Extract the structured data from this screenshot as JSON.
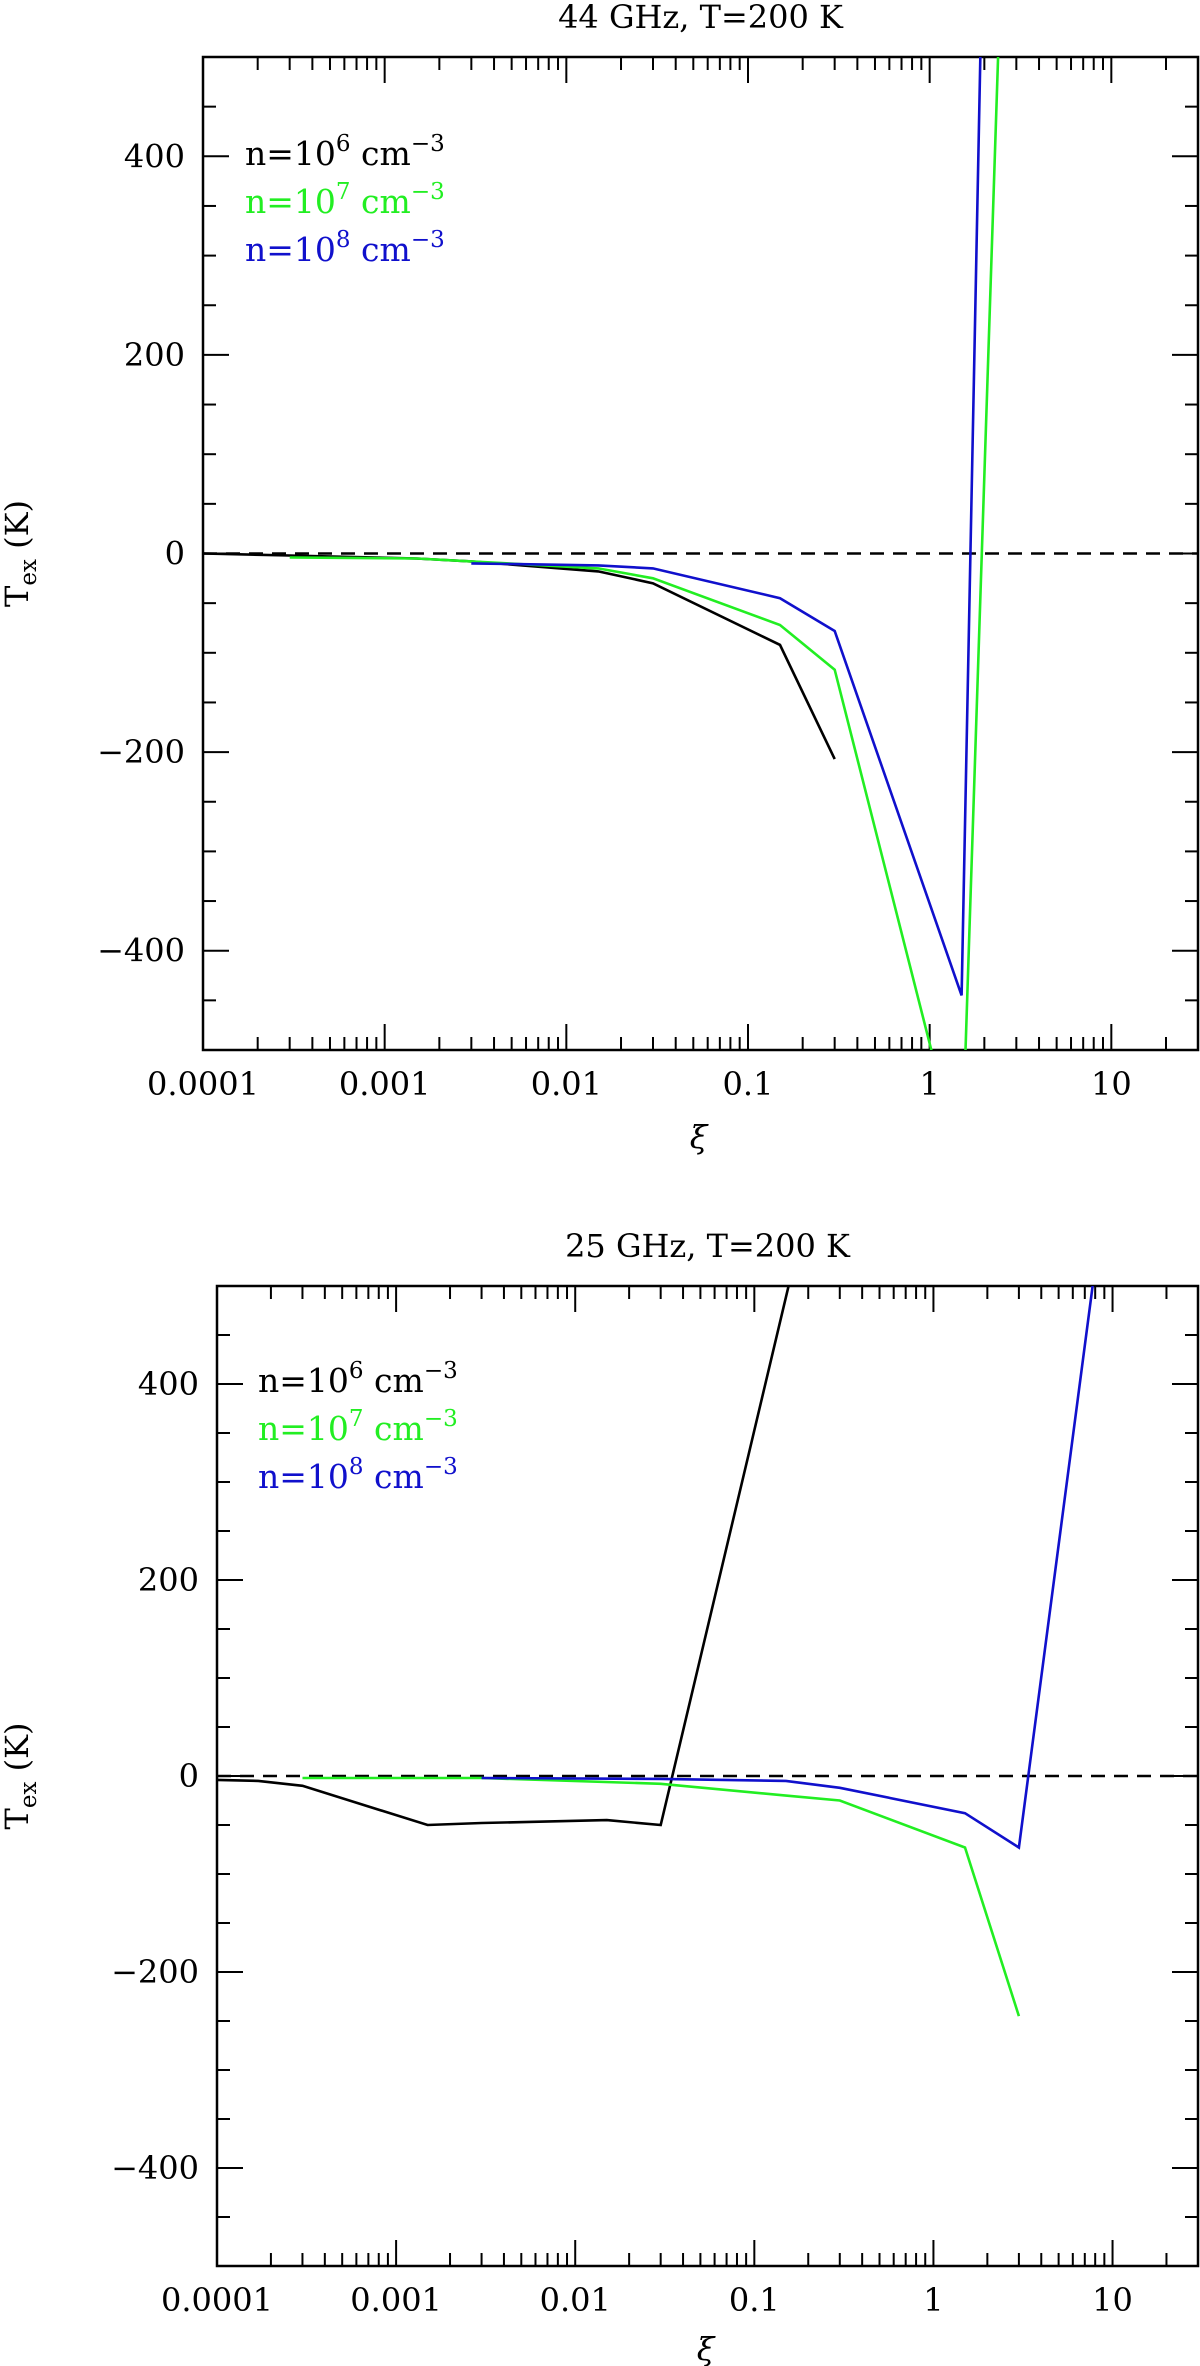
{
  "chart_data": [
    {
      "type": "line",
      "title": "44 GHz, T=200 K",
      "xlabel": "ξ",
      "ylabel": "T",
      "ylabel_sub": "ex",
      "ylabel_unit": "(K)",
      "xscale": "log",
      "xlim": [
        0.0001,
        30
      ],
      "ylim": [
        -500,
        500
      ],
      "x_ticks": [
        0.0001,
        0.001,
        0.01,
        0.1,
        1,
        10
      ],
      "x_tick_labels": [
        "0.0001",
        "0.001",
        "0.01",
        "0.1",
        "1",
        "10"
      ],
      "y_ticks": [
        -400,
        -200,
        0,
        200,
        400
      ],
      "y_tick_labels": [
        "−400",
        "−200",
        "0",
        "200",
        "400"
      ],
      "reference_line": {
        "y": 0,
        "style": "dashed",
        "color": "#000000"
      },
      "legend_position": "top-left",
      "series": [
        {
          "name_base": "n=10",
          "name_exp": "6",
          "name_unit": "cm",
          "name_unit_exp": "−3",
          "color": "#000000",
          "points": [
            [
              0.0001,
              0
            ],
            [
              0.0003,
              -2
            ],
            [
              0.0015,
              -5
            ],
            [
              0.003,
              -8
            ],
            [
              0.015,
              -18
            ],
            [
              0.03,
              -30
            ],
            [
              0.15,
              -92
            ],
            [
              0.3,
              -207
            ]
          ]
        },
        {
          "name_base": "n=10",
          "name_exp": "7",
          "name_unit": "cm",
          "name_unit_exp": "−3",
          "color": "#22ee22",
          "points": [
            [
              0.0003,
              -4
            ],
            [
              0.0015,
              -5
            ],
            [
              0.003,
              -8
            ],
            [
              0.015,
              -15
            ],
            [
              0.03,
              -25
            ],
            [
              0.15,
              -72
            ],
            [
              0.3,
              -117
            ],
            [
              1.5,
              -620
            ],
            [
              2.5,
              620
            ]
          ]
        },
        {
          "name_base": "n=10",
          "name_exp": "8",
          "name_unit": "cm",
          "name_unit_exp": "−3",
          "color": "#1010cc",
          "points": [
            [
              0.003,
              -10
            ],
            [
              0.015,
              -12
            ],
            [
              0.03,
              -15
            ],
            [
              0.15,
              -45
            ],
            [
              0.3,
              -78
            ],
            [
              1.5,
              -445
            ],
            [
              2.0,
              700
            ]
          ]
        }
      ]
    },
    {
      "type": "line",
      "title": "25 GHz, T=200 K",
      "xlabel": "ξ",
      "ylabel": "T",
      "ylabel_sub": "ex",
      "ylabel_unit": "(K)",
      "xscale": "log",
      "xlim": [
        0.0001,
        30
      ],
      "ylim": [
        -500,
        500
      ],
      "x_ticks": [
        0.0001,
        0.001,
        0.01,
        0.1,
        1,
        10
      ],
      "x_tick_labels": [
        "0.0001",
        "0.001",
        "0.01",
        "0.1",
        "1",
        "10"
      ],
      "y_ticks": [
        -400,
        -200,
        0,
        200,
        400
      ],
      "y_tick_labels": [
        "−400",
        "−200",
        "0",
        "200",
        "400"
      ],
      "reference_line": {
        "y": 0,
        "style": "dashed",
        "color": "#000000"
      },
      "legend_position": "top-left",
      "series": [
        {
          "name_base": "n=10",
          "name_exp": "6",
          "name_unit": "cm",
          "name_unit_exp": "−3",
          "color": "#000000",
          "points": [
            [
              0.0001,
              -4
            ],
            [
              0.00017,
              -5
            ],
            [
              0.0003,
              -10
            ],
            [
              0.0015,
              -50
            ],
            [
              0.003,
              -48
            ],
            [
              0.015,
              -45
            ],
            [
              0.03,
              -50
            ],
            [
              0.16,
              510
            ]
          ]
        },
        {
          "name_base": "n=10",
          "name_exp": "7",
          "name_unit": "cm",
          "name_unit_exp": "−3",
          "color": "#22ee22",
          "points": [
            [
              0.0003,
              -2
            ],
            [
              0.003,
              -2
            ],
            [
              0.03,
              -8
            ],
            [
              0.15,
              -20
            ],
            [
              0.3,
              -25
            ],
            [
              1.5,
              -73
            ],
            [
              3.0,
              -245
            ]
          ]
        },
        {
          "name_base": "n=10",
          "name_exp": "8",
          "name_unit": "cm",
          "name_unit_exp": "−3",
          "color": "#1010cc",
          "points": [
            [
              0.003,
              -2
            ],
            [
              0.03,
              -3
            ],
            [
              0.15,
              -5
            ],
            [
              0.3,
              -12
            ],
            [
              1.5,
              -38
            ],
            [
              3.0,
              -73
            ],
            [
              8.0,
              520
            ]
          ]
        }
      ]
    }
  ]
}
